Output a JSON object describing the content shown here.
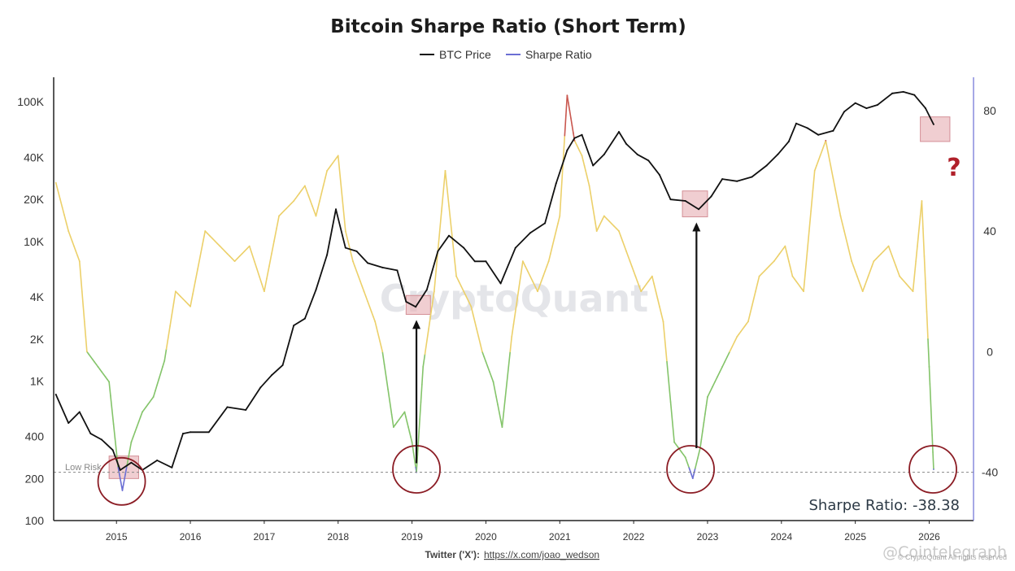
{
  "chart_data": {
    "type": "line",
    "title": "Bitcoin Sharpe Ratio (Short Term)",
    "legend": {
      "placement": "top-center",
      "items": [
        {
          "name": "BTC Price",
          "color": "#111111"
        },
        {
          "name": "Sharpe Ratio",
          "color": "#6b6fd4"
        }
      ]
    },
    "x_axis": {
      "range": [
        2014.15,
        2026.6
      ],
      "tick_labels": [
        "2015",
        "2016",
        "2017",
        "2018",
        "2019",
        "2020",
        "2021",
        "2022",
        "2023",
        "2024",
        "2025",
        "2026"
      ],
      "tick_values": [
        2015,
        2016,
        2017,
        2018,
        2019,
        2020,
        2021,
        2022,
        2023,
        2024,
        2025,
        2026
      ]
    },
    "y_left": {
      "scale": "log",
      "range": [
        100,
        150000
      ],
      "tick_labels": [
        "100",
        "200",
        "400",
        "1K",
        "2K",
        "4K",
        "10K",
        "20K",
        "40K",
        "100K"
      ],
      "tick_values": [
        100,
        200,
        400,
        1000,
        2000,
        4000,
        10000,
        20000,
        40000,
        100000
      ]
    },
    "y_right": {
      "scale": "linear",
      "range": [
        -56,
        91
      ],
      "tick_labels": [
        "-40",
        "0",
        "40",
        "80"
      ],
      "tick_values": [
        -40,
        0,
        40,
        80
      ]
    },
    "sharpe_color_bands": [
      {
        "range": "below -38",
        "color": "#6b6fd4"
      },
      {
        "range": "-38 to 0",
        "color": "#84c46a"
      },
      {
        "range": "0 to 70",
        "color": "#ecd06a"
      },
      {
        "range": "above 70",
        "color": "#c9574f"
      }
    ],
    "series": [
      {
        "name": "BTC Price",
        "axis": "left",
        "color": "#111111",
        "x": [
          2014.18,
          2014.35,
          2014.5,
          2014.65,
          2014.8,
          2014.95,
          2015.05,
          2015.2,
          2015.35,
          2015.55,
          2015.75,
          2015.9,
          2016.0,
          2016.25,
          2016.5,
          2016.75,
          2016.95,
          2017.1,
          2017.25,
          2017.4,
          2017.55,
          2017.7,
          2017.85,
          2017.97,
          2018.1,
          2018.25,
          2018.4,
          2018.6,
          2018.8,
          2018.92,
          2019.05,
          2019.2,
          2019.35,
          2019.5,
          2019.7,
          2019.85,
          2020.0,
          2020.2,
          2020.4,
          2020.6,
          2020.8,
          2020.95,
          2021.1,
          2021.2,
          2021.3,
          2021.45,
          2021.6,
          2021.8,
          2021.9,
          2022.05,
          2022.2,
          2022.35,
          2022.5,
          2022.7,
          2022.88,
          2023.05,
          2023.2,
          2023.4,
          2023.6,
          2023.8,
          2023.95,
          2024.1,
          2024.2,
          2024.35,
          2024.5,
          2024.7,
          2024.85,
          2025.0,
          2025.15,
          2025.3,
          2025.5,
          2025.65,
          2025.8,
          2025.95,
          2026.06
        ],
        "y": [
          800,
          500,
          600,
          420,
          380,
          320,
          230,
          260,
          230,
          270,
          240,
          420,
          430,
          430,
          650,
          620,
          900,
          1100,
          1300,
          2500,
          2800,
          4500,
          8000,
          17000,
          9000,
          8500,
          7000,
          6500,
          6200,
          3700,
          3400,
          4500,
          8500,
          11000,
          9000,
          7200,
          7200,
          5000,
          9000,
          11500,
          13500,
          26000,
          45000,
          55000,
          58000,
          35000,
          42000,
          61000,
          50000,
          42000,
          38000,
          30000,
          20000,
          19500,
          17000,
          21000,
          28000,
          27000,
          29000,
          35000,
          42000,
          52000,
          70000,
          65000,
          58000,
          62000,
          85000,
          98000,
          90000,
          95000,
          115000,
          118000,
          112000,
          90000,
          69000
        ]
      },
      {
        "name": "Sharpe Ratio",
        "axis": "right",
        "color": "#6b6fd4",
        "x": [
          2014.18,
          2014.35,
          2014.5,
          2014.6,
          2014.75,
          2014.9,
          2015.02,
          2015.08,
          2015.2,
          2015.35,
          2015.5,
          2015.65,
          2015.8,
          2016.0,
          2016.2,
          2016.4,
          2016.6,
          2016.8,
          2017.0,
          2017.2,
          2017.4,
          2017.55,
          2017.7,
          2017.85,
          2018.0,
          2018.1,
          2018.2,
          2018.35,
          2018.5,
          2018.6,
          2018.75,
          2018.9,
          2019.0,
          2019.06,
          2019.15,
          2019.3,
          2019.45,
          2019.6,
          2019.8,
          2019.95,
          2020.1,
          2020.22,
          2020.35,
          2020.5,
          2020.7,
          2020.85,
          2021.0,
          2021.1,
          2021.2,
          2021.3,
          2021.4,
          2021.5,
          2021.6,
          2021.8,
          2021.95,
          2022.1,
          2022.25,
          2022.4,
          2022.55,
          2022.7,
          2022.8,
          2022.9,
          2023.0,
          2023.2,
          2023.4,
          2023.55,
          2023.7,
          2023.9,
          2024.05,
          2024.15,
          2024.3,
          2024.45,
          2024.6,
          2024.8,
          2024.95,
          2025.1,
          2025.25,
          2025.45,
          2025.6,
          2025.78,
          2025.9,
          2026.0,
          2026.06
        ],
        "y": [
          56,
          40,
          30,
          0,
          -5,
          -10,
          -38,
          -46,
          -30,
          -20,
          -15,
          -3,
          20,
          15,
          40,
          35,
          30,
          35,
          20,
          45,
          50,
          55,
          45,
          60,
          65,
          40,
          30,
          20,
          10,
          0,
          -25,
          -20,
          -30,
          -40,
          -5,
          20,
          60,
          25,
          15,
          0,
          -10,
          -25,
          5,
          30,
          20,
          30,
          45,
          85,
          70,
          65,
          55,
          40,
          45,
          40,
          30,
          20,
          25,
          10,
          -30,
          -35,
          -42,
          -32,
          -15,
          -5,
          5,
          10,
          25,
          30,
          35,
          25,
          20,
          60,
          70,
          45,
          30,
          20,
          30,
          35,
          25,
          20,
          50,
          -5,
          -39
        ]
      }
    ],
    "annotations": {
      "low_risk_label": "Low Risk",
      "low_risk_level": -40,
      "question_mark": "?",
      "sharpe_label": "Sharpe Ratio: -38.38",
      "watermark": "CryptoQuant",
      "credit_line": "@Cointelegraph",
      "credit_small": "© CryptoQuant All rights reserved",
      "footer_prefix": "Twitter ('X'):",
      "footer_link": "https://x.com/joao_wedson",
      "highlight_boxes": [
        {
          "x_from": 2014.9,
          "x_to": 2015.3,
          "y_from": 200,
          "y_to": 290
        },
        {
          "x_from": 2018.92,
          "x_to": 2019.25,
          "y_from": 3000,
          "y_to": 4100
        },
        {
          "x_from": 2022.66,
          "x_to": 2023.0,
          "y_from": 15000,
          "y_to": 23000
        },
        {
          "x_from": 2025.88,
          "x_to": 2026.28,
          "y_from": 52000,
          "y_to": 78000
        }
      ],
      "circles": [
        {
          "x": 2015.07,
          "sharpe": -43
        },
        {
          "x": 2019.06,
          "sharpe": -39
        },
        {
          "x": 2022.77,
          "sharpe": -39
        },
        {
          "x": 2026.05,
          "sharpe": -39
        }
      ],
      "arrows": [
        {
          "x": 2019.06,
          "sharpe_from": -37,
          "price_to": 2700
        },
        {
          "x": 2022.85,
          "sharpe_from": -32,
          "price_to": 13500
        }
      ]
    }
  }
}
